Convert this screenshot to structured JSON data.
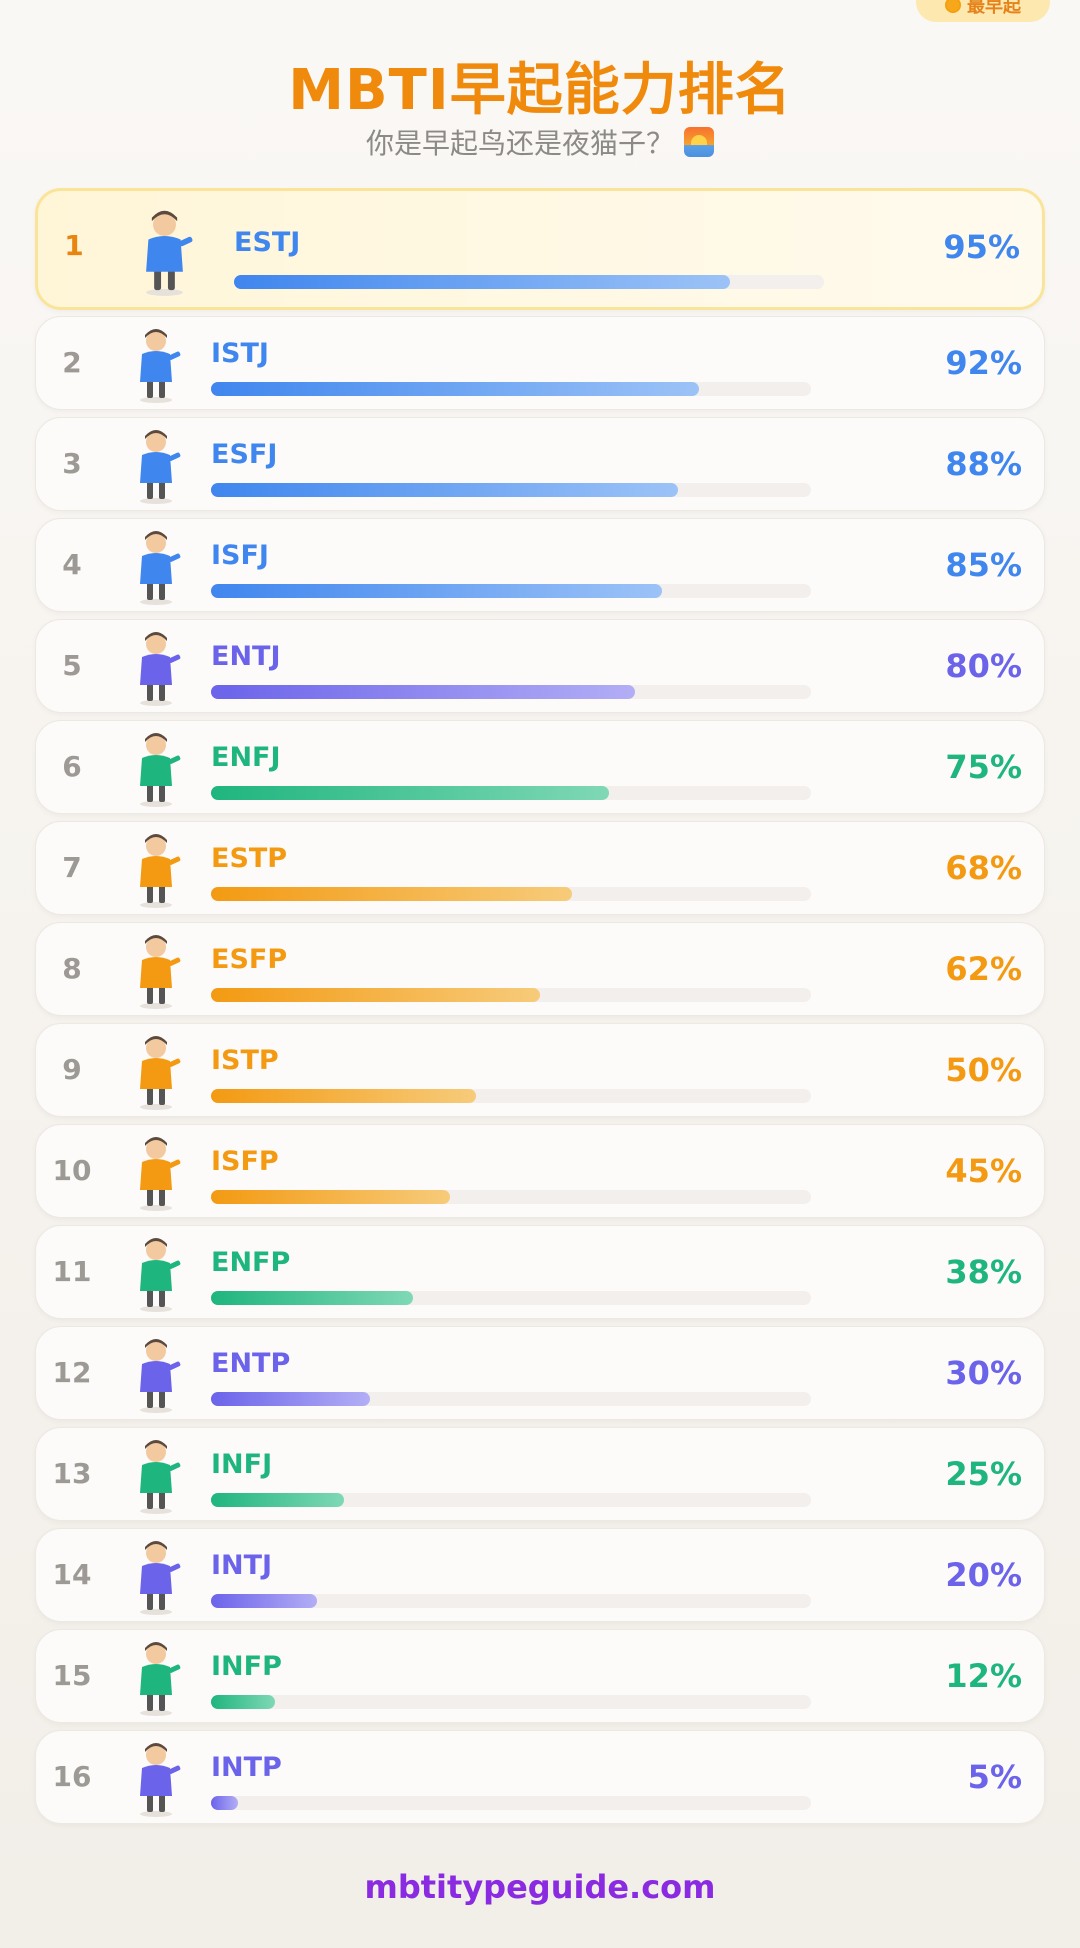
{
  "header": {
    "corner_badge": "最早起",
    "title": "MBTI早起能力排名",
    "subtitle": "你是早起鸟还是夜猫子？"
  },
  "colors": {
    "blue": "#3f86ee",
    "purple": "#6b63ea",
    "green": "#1fb57f",
    "orange": "#f39a12"
  },
  "rankings": [
    {
      "rank": "1",
      "type": "ESTJ",
      "value": 95,
      "percent": "95%",
      "group": "blue"
    },
    {
      "rank": "2",
      "type": "ISTJ",
      "value": 92,
      "percent": "92%",
      "group": "blue"
    },
    {
      "rank": "3",
      "type": "ESFJ",
      "value": 88,
      "percent": "88%",
      "group": "blue"
    },
    {
      "rank": "4",
      "type": "ISFJ",
      "value": 85,
      "percent": "85%",
      "group": "blue"
    },
    {
      "rank": "5",
      "type": "ENTJ",
      "value": 80,
      "percent": "80%",
      "group": "purple"
    },
    {
      "rank": "6",
      "type": "ENFJ",
      "value": 75,
      "percent": "75%",
      "group": "green"
    },
    {
      "rank": "7",
      "type": "ESTP",
      "value": 68,
      "percent": "68%",
      "group": "orange"
    },
    {
      "rank": "8",
      "type": "ESFP",
      "value": 62,
      "percent": "62%",
      "group": "orange"
    },
    {
      "rank": "9",
      "type": "ISTP",
      "value": 50,
      "percent": "50%",
      "group": "orange"
    },
    {
      "rank": "10",
      "type": "ISFP",
      "value": 45,
      "percent": "45%",
      "group": "orange"
    },
    {
      "rank": "11",
      "type": "ENFP",
      "value": 38,
      "percent": "38%",
      "group": "green"
    },
    {
      "rank": "12",
      "type": "ENTP",
      "value": 30,
      "percent": "30%",
      "group": "purple"
    },
    {
      "rank": "13",
      "type": "INFJ",
      "value": 25,
      "percent": "25%",
      "group": "green"
    },
    {
      "rank": "14",
      "type": "INTJ",
      "value": 20,
      "percent": "20%",
      "group": "purple"
    },
    {
      "rank": "15",
      "type": "INFP",
      "value": 12,
      "percent": "12%",
      "group": "green"
    },
    {
      "rank": "16",
      "type": "INTP",
      "value": 5,
      "percent": "5%",
      "group": "purple"
    }
  ],
  "footer": {
    "site": "mbtitypeguide.com"
  }
}
